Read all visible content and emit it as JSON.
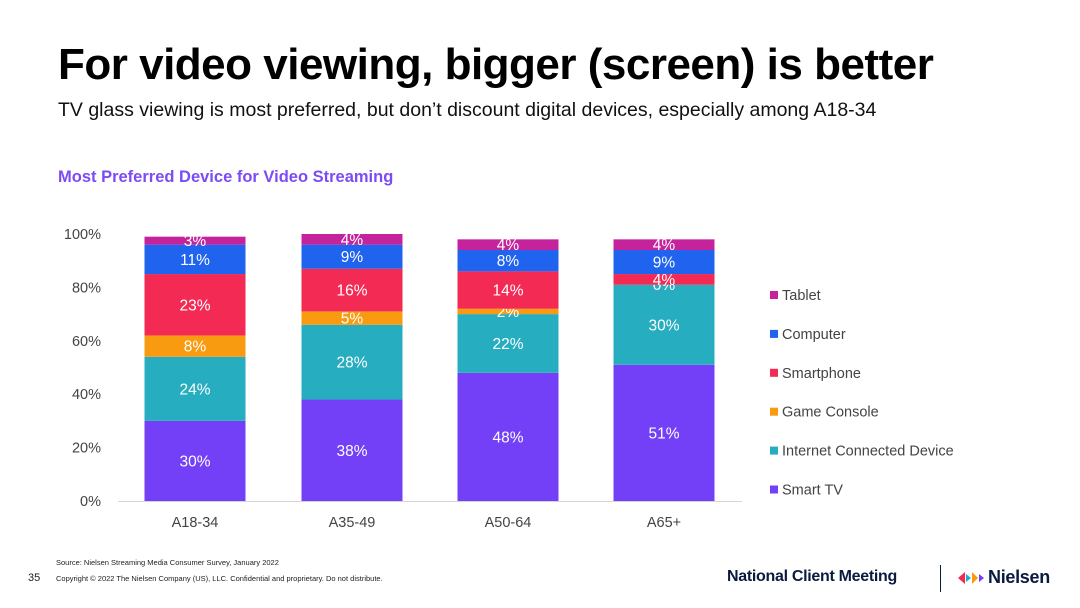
{
  "header": {
    "title": "For video viewing, bigger (screen) is better",
    "subtitle": "TV glass viewing is most preferred, but don’t discount digital devices, especially among A18-34"
  },
  "chart_data": {
    "type": "bar",
    "stacked": true,
    "title": "Most Preferred Device for Video Streaming",
    "categories": [
      "A18-34",
      "A35-49",
      "A50-64",
      "A65+"
    ],
    "ylim": [
      0,
      100
    ],
    "yticks": [
      0,
      20,
      40,
      60,
      80,
      100
    ],
    "ytick_labels": [
      "0%",
      "20%",
      "40%",
      "60%",
      "80%",
      "100%"
    ],
    "legend_position": "right",
    "series": [
      {
        "name": "Smart TV",
        "color": "#7340f7",
        "values": [
          30,
          38,
          48,
          51
        ],
        "labels": [
          "30%",
          "38%",
          "48%",
          "51%"
        ]
      },
      {
        "name": "Internet Connected Device",
        "color": "#26adbf",
        "values": [
          24,
          28,
          22,
          30
        ],
        "labels": [
          "24%",
          "28%",
          "22%",
          "30%"
        ]
      },
      {
        "name": "Game Console",
        "color": "#f99b10",
        "values": [
          8,
          5,
          2,
          0
        ],
        "labels": [
          "8%",
          "5%",
          "2%",
          "0%"
        ]
      },
      {
        "name": "Smartphone",
        "color": "#f22a54",
        "values": [
          23,
          16,
          14,
          4
        ],
        "labels": [
          "23%",
          "16%",
          "14%",
          "4%"
        ]
      },
      {
        "name": "Computer",
        "color": "#1f63ee",
        "values": [
          11,
          9,
          8,
          9
        ],
        "labels": [
          "11%",
          "9%",
          "8%",
          "9%"
        ]
      },
      {
        "name": "Tablet",
        "color": "#c5239b",
        "values": [
          3,
          4,
          4,
          4
        ],
        "labels": [
          "3%",
          "4%",
          "4%",
          "4%"
        ]
      }
    ]
  },
  "footer": {
    "source": "Source: Nielsen Streaming Media Consumer Survey, January 2022",
    "copyright": "Copyright © 2022 The Nielsen Company (US), LLC. Confidential and proprietary. Do not distribute.",
    "page_number": "35",
    "event": "National Client Meeting",
    "brand": "Nielsen",
    "brand_colors": [
      "#f22a54",
      "#26adbf",
      "#f99b10",
      "#7340f7"
    ]
  }
}
